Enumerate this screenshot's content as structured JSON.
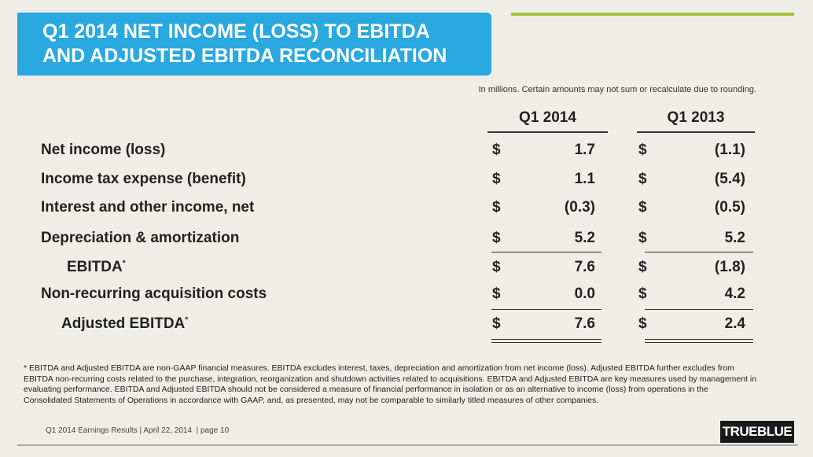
{
  "header": {
    "title_line_1": "Q1 2014 NET INCOME (LOSS) TO EBITDA",
    "title_line_2": "AND ADJUSTED EBITDA RECONCILIATION"
  },
  "note": "In millions. Certain amounts may not sum or recalculate due to rounding.",
  "table": {
    "columns": [
      "Q1 2014",
      "Q1 2013"
    ],
    "currency": "$",
    "footnote_mark": "*",
    "rows": [
      {
        "label": "Net income (loss)",
        "values": [
          "1.7",
          "(1.1)"
        ]
      },
      {
        "label": "Income tax expense (benefit)",
        "values": [
          "1.1",
          "(5.4)"
        ]
      },
      {
        "label": "Interest and other income, net",
        "values": [
          "(0.3)",
          "(0.5)"
        ]
      },
      {
        "label": "Depreciation & amortization",
        "values": [
          "5.2",
          "5.2"
        ]
      },
      {
        "label": "EBITDA",
        "values": [
          "7.6",
          "(1.8)"
        ]
      },
      {
        "label": "Non-recurring acquisition costs",
        "values": [
          "0.0",
          "4.2"
        ]
      },
      {
        "label": "Adjusted EBITDA",
        "values": [
          "7.6",
          "2.4"
        ]
      }
    ]
  },
  "footnote": "* EBITDA and Adjusted EBITDA are non-GAAP financial measures. EBITDA excludes interest, taxes, depreciation and amortization from net income (loss). Adjusted EBITDA further excludes from EBITDA non-recurring costs related to the purchase, integration, reorganization and shutdown activities related to acquisitions. EBITDA and Adjusted EBITDA are key measures used by management in evaluating performance. EBITDA and Adjusted EBITDA should not be considered a measure of financial performance in isolation or as an alternative to income (loss) from operations in the Consolidated Statements of Operations in accordance with GAAP, and, as presented, may not be comparable to similarly titled measures of other companies.",
  "footer": "Q1 2014 Earnings Results | April 22, 2014  | page 10",
  "logo": "TRUEBLUE"
}
